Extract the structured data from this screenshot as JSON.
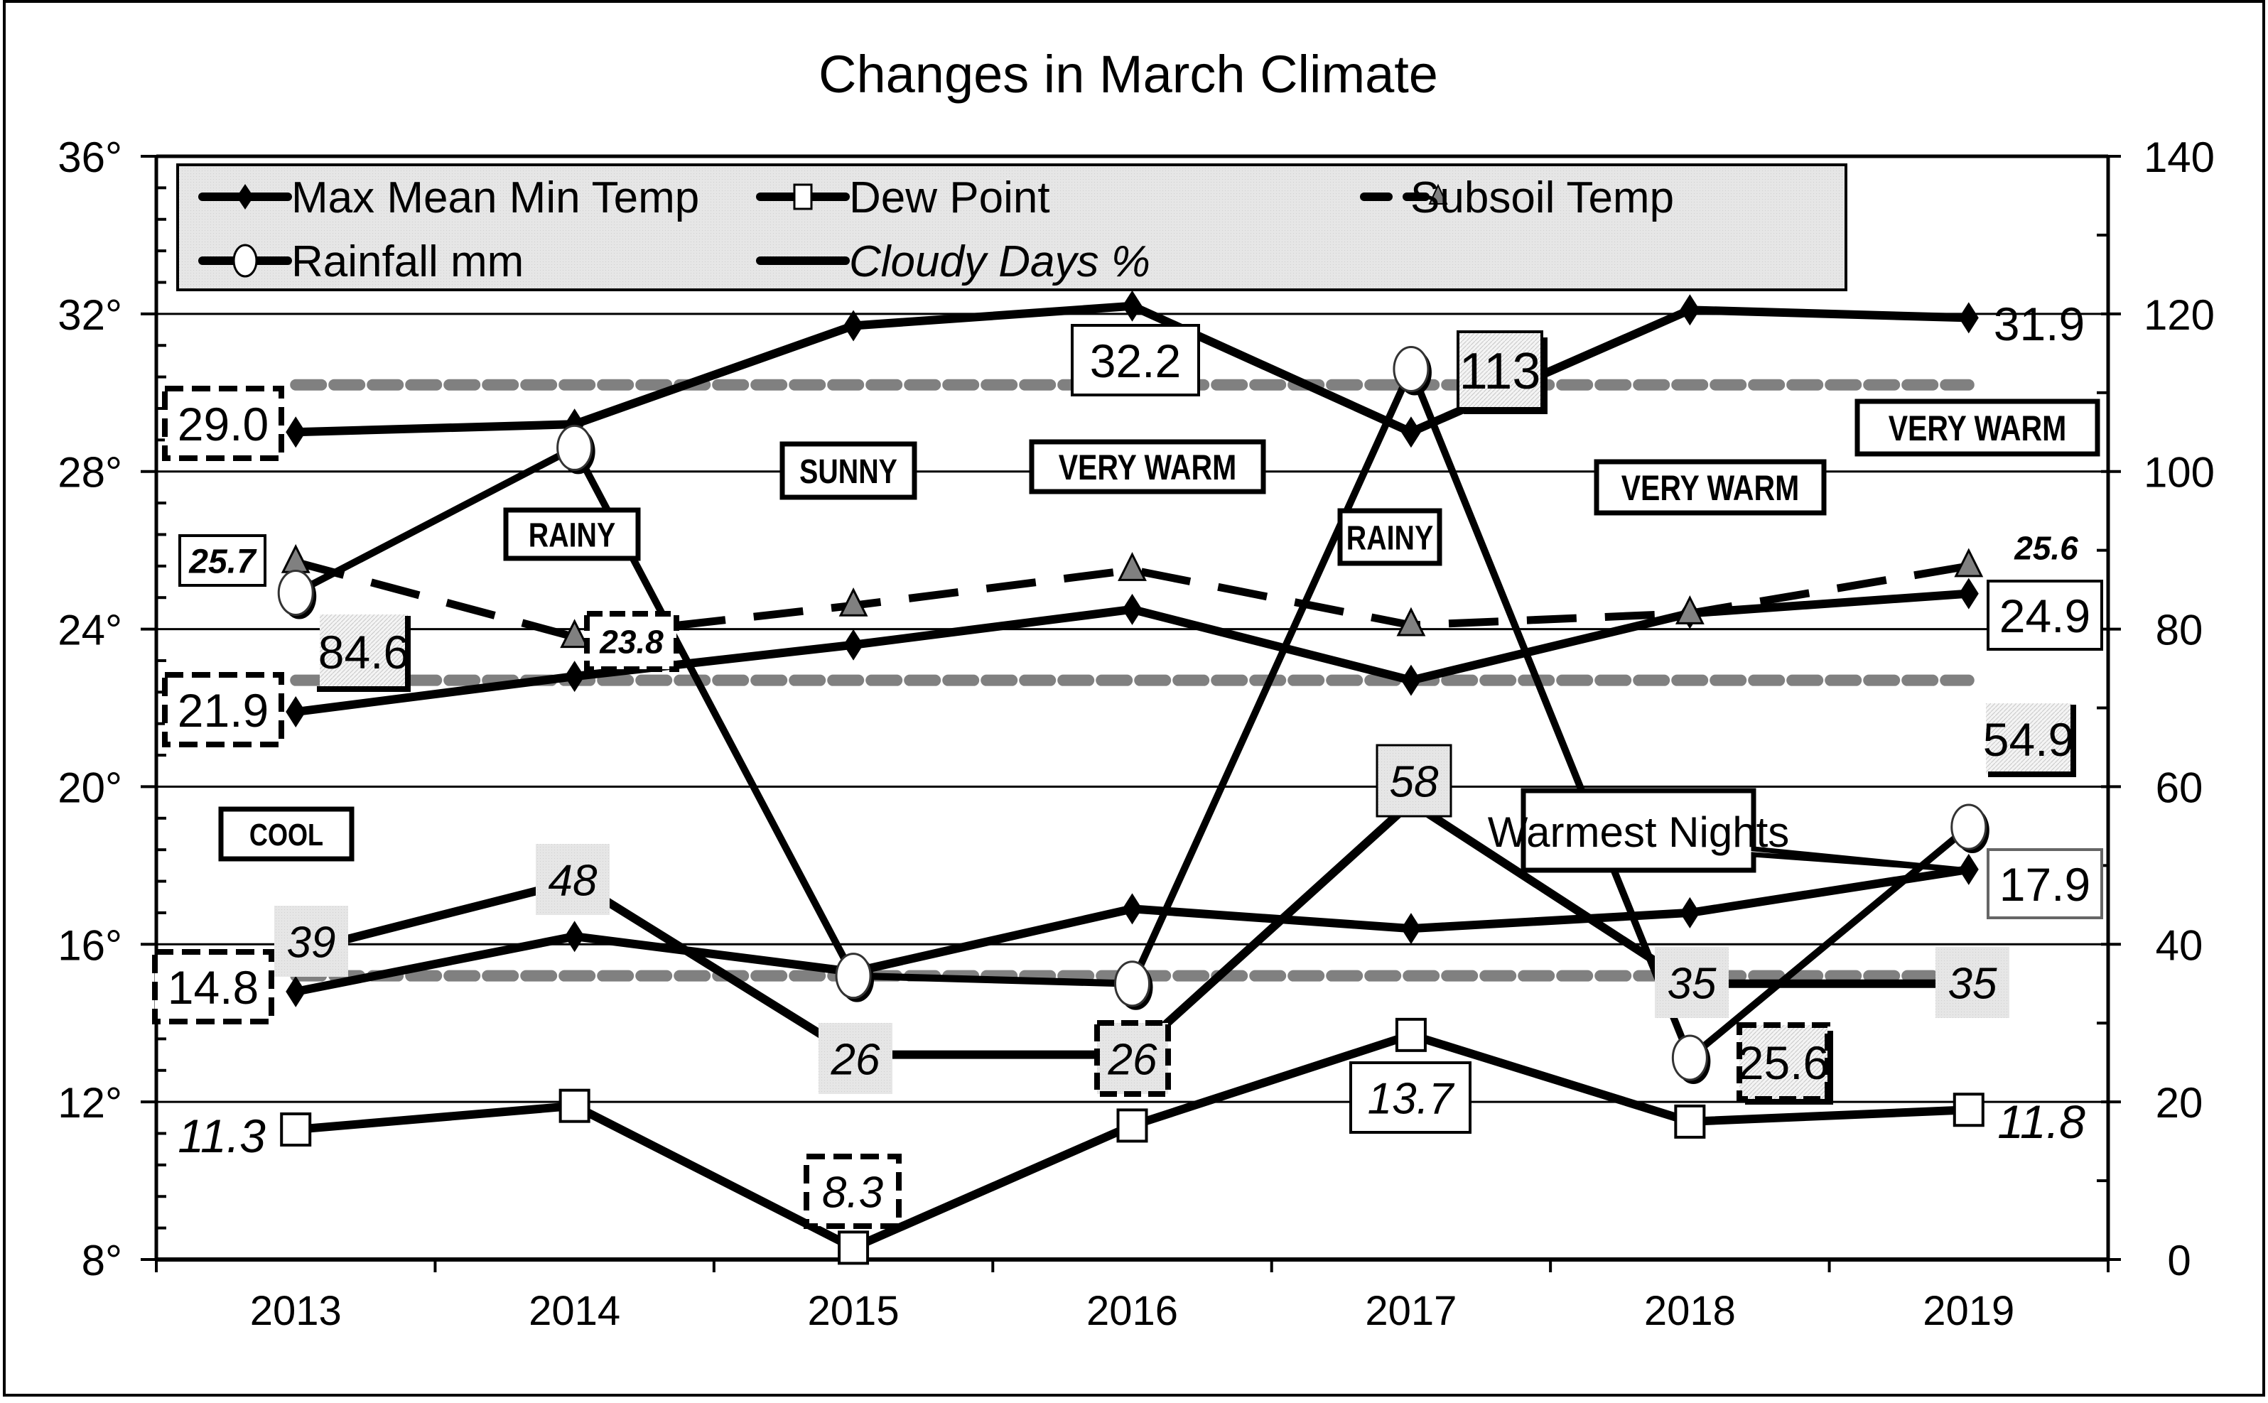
{
  "chart_data": {
    "type": "line",
    "title": "Changes in March Climate",
    "categories": [
      "2013",
      "2014",
      "2015",
      "2016",
      "2017",
      "2018",
      "2019"
    ],
    "y_left": {
      "range": [
        8,
        36
      ],
      "ticks": [
        "8°",
        "12°",
        "16°",
        "20°",
        "24°",
        "28°",
        "32°",
        "36°"
      ],
      "tick_values": [
        8,
        12,
        16,
        20,
        24,
        28,
        32,
        36
      ]
    },
    "y_right": {
      "range": [
        0,
        140
      ],
      "ticks": [
        "0",
        "20",
        "40",
        "60",
        "80",
        "100",
        "120",
        "140"
      ],
      "tick_values": [
        0,
        20,
        40,
        60,
        80,
        100,
        120,
        140
      ]
    },
    "grid": true,
    "legend_position": "top-left",
    "legend": [
      {
        "label": "Max Mean Min Temp",
        "marker": "diamond"
      },
      {
        "label": "Dew Point",
        "marker": "square"
      },
      {
        "label": "Subsoil Temp",
        "marker": "triangle"
      },
      {
        "label": "Rainfall mm",
        "marker": "circle"
      },
      {
        "label": "Cloudy Days %",
        "marker": "none"
      }
    ],
    "series": [
      {
        "name": "Max Temp",
        "axis": "left",
        "values": [
          29.0,
          29.2,
          31.7,
          32.2,
          29.0,
          32.1,
          31.9
        ]
      },
      {
        "name": "Mean Temp",
        "axis": "left",
        "values": [
          21.9,
          22.8,
          23.6,
          24.5,
          22.7,
          24.4,
          24.9
        ]
      },
      {
        "name": "Min Temp",
        "axis": "left",
        "values": [
          14.8,
          16.2,
          15.3,
          16.9,
          16.4,
          16.8,
          17.9
        ]
      },
      {
        "name": "Dew Point",
        "axis": "left",
        "values": [
          11.3,
          11.9,
          8.3,
          11.4,
          13.7,
          11.5,
          11.8
        ]
      },
      {
        "name": "Subsoil Temp",
        "axis": "left",
        "values": [
          25.7,
          23.8,
          24.6,
          25.5,
          24.1,
          24.4,
          25.6
        ]
      },
      {
        "name": "Rainfall mm",
        "axis": "right",
        "values": [
          84.6,
          103,
          36,
          35,
          113,
          25.6,
          54.9
        ]
      },
      {
        "name": "Cloudy Days %",
        "axis": "right",
        "values": [
          39,
          48,
          26,
          26,
          58,
          35,
          35
        ]
      }
    ],
    "reference_lines": [
      {
        "axis": "left",
        "value": 30.2
      },
      {
        "axis": "left",
        "value": 22.7
      },
      {
        "axis": "left",
        "value": 15.2
      }
    ],
    "data_labels": {
      "max": [
        "29.0",
        "32.2",
        "31.9"
      ],
      "mean": [
        "21.9",
        "24.9"
      ],
      "min": [
        "14.8",
        "17.9"
      ],
      "dew": [
        "11.3",
        "8.3",
        "13.7",
        "11.8"
      ],
      "subsoil": [
        "25.7",
        "23.8",
        "25.6"
      ],
      "rain": [
        "84.6",
        "113",
        "25.6",
        "54.9"
      ],
      "cloudy": [
        "39",
        "48",
        "26",
        "26",
        "58",
        "35",
        "35"
      ]
    },
    "annotations": {
      "cool": "COOL",
      "rainy_2014": "RAINY",
      "sunny": "SUNNY",
      "very_warm_2016": "VERY WARM",
      "rainy_2017": "RAINY",
      "very_warm_2018": "VERY WARM",
      "very_warm_2019": "VERY WARM",
      "warmest_nights": "Warmest Nights"
    }
  }
}
